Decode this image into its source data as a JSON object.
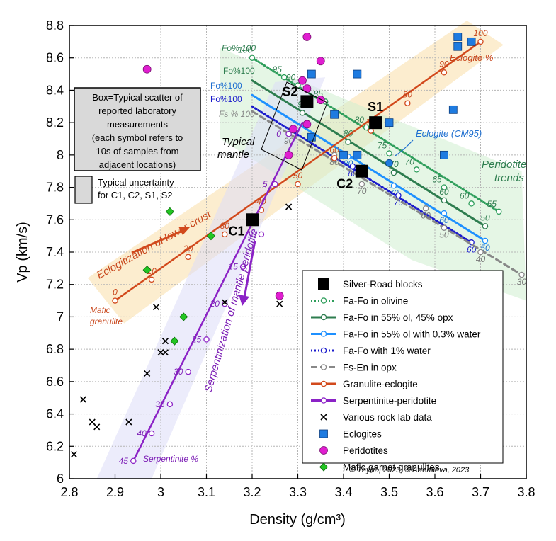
{
  "chart_data": {
    "type": "line",
    "xlabel": "Density (g/cm³)",
    "ylabel": "Vp (km/s)",
    "xlim": [
      2.8,
      3.8
    ],
    "ylim": [
      6.0,
      8.8
    ],
    "xticks": [
      "2.8",
      "2.9",
      "3",
      "3.1",
      "3.2",
      "3.3",
      "3.4",
      "3.5",
      "3.6",
      "3.7",
      "3.8"
    ],
    "yticks": [
      "6",
      "6.2",
      "6.4",
      "6.6",
      "6.8",
      "7",
      "7.2",
      "7.4",
      "7.6",
      "7.8",
      "8",
      "8.2",
      "8.4",
      "8.6",
      "8.8"
    ],
    "grid": true,
    "legend_position": "bottom-right",
    "colors": {
      "olivine": "#2e9e5b",
      "ol_opx": "#2e7d4f",
      "water03": "#1e90ff",
      "water1": "#1a1acc",
      "opx": "#888888",
      "granulite": "#d2491c",
      "serpentinite": "#8b22c6",
      "eclogite_marker": "#1e7be0",
      "peridotite_marker": "#e01ed0",
      "mafic_marker": "#22c522"
    },
    "series": [
      {
        "name": "Fa-Fo in olivine",
        "style": "dotted",
        "x": [
          3.2,
          3.74
        ],
        "y": [
          8.6,
          7.65
        ],
        "ticks": [
          {
            "v": "100",
            "x": 3.2,
            "y": 8.6
          },
          {
            "v": "95",
            "x": 3.27,
            "y": 8.48
          },
          {
            "v": "90",
            "x": 3.3,
            "y": 8.43
          },
          {
            "v": "85",
            "x": 3.36,
            "y": 8.33
          },
          {
            "v": "80",
            "x": 3.45,
            "y": 8.17
          },
          {
            "v": "75",
            "x": 3.5,
            "y": 8.01
          },
          {
            "v": "70",
            "x": 3.56,
            "y": 7.91
          },
          {
            "v": "65",
            "x": 3.62,
            "y": 7.8
          },
          {
            "v": "60",
            "x": 3.68,
            "y": 7.7
          },
          {
            "v": "55",
            "x": 3.74,
            "y": 7.65
          }
        ]
      },
      {
        "name": "Fa-Fo in 55% ol, 45% opx",
        "style": "solid",
        "x": [
          3.2,
          3.71
        ],
        "y": [
          8.46,
          7.56
        ],
        "ticks": [
          {
            "v": "90",
            "x": 3.31,
            "y": 8.26
          },
          {
            "v": "80",
            "x": 3.41,
            "y": 8.08
          },
          {
            "v": "70",
            "x": 3.51,
            "y": 7.89
          },
          {
            "v": "60",
            "x": 3.62,
            "y": 7.72
          },
          {
            "v": "50",
            "x": 3.71,
            "y": 7.56
          }
        ]
      },
      {
        "name": "Fa-Fo in 55% ol with 0.3% water",
        "style": "solid",
        "x": [
          3.2,
          3.71
        ],
        "y": [
          8.37,
          7.47
        ],
        "ticks": [
          {
            "v": "80",
            "x": 3.41,
            "y": 7.99
          },
          {
            "v": "70",
            "x": 3.51,
            "y": 7.81
          },
          {
            "v": "60",
            "x": 3.62,
            "y": 7.64
          },
          {
            "v": "50",
            "x": 3.71,
            "y": 7.47
          }
        ]
      },
      {
        "name": "Fa-Fo with 1% water",
        "style": "dotted",
        "x": [
          3.2,
          3.68
        ],
        "y": [
          8.3,
          7.46
        ],
        "ticks": [
          {
            "v": "80",
            "x": 3.42,
            "y": 7.93
          },
          {
            "v": "70",
            "x": 3.52,
            "y": 7.75
          },
          {
            "v": "60",
            "x": 3.68,
            "y": 7.46
          }
        ]
      },
      {
        "name": "Fs-En in opx",
        "style": "dashed",
        "x": [
          3.2,
          3.79
        ],
        "y": [
          8.27,
          7.26
        ],
        "ticks": [
          {
            "v": "90",
            "x": 3.28,
            "y": 8.13
          },
          {
            "v": "80",
            "x": 3.38,
            "y": 8.0
          },
          {
            "v": "70",
            "x": 3.44,
            "y": 7.82
          },
          {
            "v": "60",
            "x": 3.58,
            "y": 7.67
          },
          {
            "v": "50",
            "x": 3.62,
            "y": 7.55
          },
          {
            "v": "40",
            "x": 3.7,
            "y": 7.4
          },
          {
            "v": "30",
            "x": 3.79,
            "y": 7.26
          }
        ]
      },
      {
        "name": "Granulite-eclogite",
        "style": "solid",
        "x": [
          2.9,
          3.7
        ],
        "y": [
          7.1,
          8.7
        ],
        "ticks": [
          {
            "v": "0",
            "x": 2.9,
            "y": 7.1
          },
          {
            "v": "10",
            "x": 2.98,
            "y": 7.23
          },
          {
            "v": "20",
            "x": 3.06,
            "y": 7.37
          },
          {
            "v": "30",
            "x": 3.14,
            "y": 7.51
          },
          {
            "v": "40",
            "x": 3.22,
            "y": 7.66
          },
          {
            "v": "50",
            "x": 3.3,
            "y": 7.82
          },
          {
            "v": "60",
            "x": 3.38,
            "y": 7.98
          },
          {
            "v": "70",
            "x": 3.46,
            "y": 8.15
          },
          {
            "v": "80",
            "x": 3.54,
            "y": 8.32
          },
          {
            "v": "90",
            "x": 3.62,
            "y": 8.51
          },
          {
            "v": "100",
            "x": 3.7,
            "y": 8.7
          }
        ]
      },
      {
        "name": "Serpentinite-peridotite",
        "style": "solid",
        "x": [
          2.94,
          3.31
        ],
        "y": [
          6.11,
          8.2
        ],
        "ticks": [
          {
            "v": "45",
            "x": 2.94,
            "y": 6.11
          },
          {
            "v": "40",
            "x": 2.98,
            "y": 6.28
          },
          {
            "v": "35",
            "x": 3.02,
            "y": 6.46
          },
          {
            "v": "30",
            "x": 3.06,
            "y": 6.66
          },
          {
            "v": "25",
            "x": 3.1,
            "y": 6.86
          },
          {
            "v": "20",
            "x": 3.14,
            "y": 7.08
          },
          {
            "v": "15",
            "x": 3.18,
            "y": 7.31
          },
          {
            "v": "10",
            "x": 3.22,
            "y": 7.51
          },
          {
            "v": "5",
            "x": 3.25,
            "y": 7.82
          },
          {
            "v": "0",
            "x": 3.28,
            "y": 8.13
          }
        ]
      }
    ],
    "points": {
      "silver_road_blocks": [
        {
          "name": "C1",
          "x": 3.2,
          "y": 7.6
        },
        {
          "name": "C2",
          "x": 3.44,
          "y": 7.9
        },
        {
          "name": "S1",
          "x": 3.47,
          "y": 8.2
        },
        {
          "name": "S2",
          "x": 3.32,
          "y": 8.33
        }
      ],
      "various_rock_lab_data": [
        {
          "x": 2.81,
          "y": 6.15
        },
        {
          "x": 2.83,
          "y": 6.49
        },
        {
          "x": 2.85,
          "y": 6.35
        },
        {
          "x": 2.86,
          "y": 6.32
        },
        {
          "x": 2.93,
          "y": 6.35
        },
        {
          "x": 2.97,
          "y": 6.65
        },
        {
          "x": 2.99,
          "y": 7.06
        },
        {
          "x": 3.0,
          "y": 6.78
        },
        {
          "x": 3.01,
          "y": 6.78
        },
        {
          "x": 3.01,
          "y": 6.85
        },
        {
          "x": 3.14,
          "y": 7.09
        },
        {
          "x": 3.26,
          "y": 7.08
        },
        {
          "x": 3.28,
          "y": 7.68
        }
      ],
      "eclogites": [
        {
          "x": 3.33,
          "y": 8.5
        },
        {
          "x": 3.43,
          "y": 8.5
        },
        {
          "x": 3.33,
          "y": 8.11
        },
        {
          "x": 3.38,
          "y": 8.25
        },
        {
          "x": 3.4,
          "y": 8.0
        },
        {
          "x": 3.43,
          "y": 8.0
        },
        {
          "x": 3.5,
          "y": 8.2
        },
        {
          "x": 3.62,
          "y": 8.0
        },
        {
          "x": 3.64,
          "y": 8.28
        },
        {
          "x": 3.65,
          "y": 8.73
        },
        {
          "x": 3.65,
          "y": 8.67
        },
        {
          "x": 3.68,
          "y": 8.7
        }
      ],
      "peridotites": [
        {
          "x": 3.32,
          "y": 8.73
        },
        {
          "x": 3.35,
          "y": 8.58
        },
        {
          "x": 3.31,
          "y": 8.46
        },
        {
          "x": 3.32,
          "y": 8.41
        },
        {
          "x": 3.35,
          "y": 8.34
        },
        {
          "x": 3.29,
          "y": 8.16
        },
        {
          "x": 3.32,
          "y": 8.19
        },
        {
          "x": 3.28,
          "y": 8.0
        },
        {
          "x": 2.97,
          "y": 8.53
        },
        {
          "x": 3.26,
          "y": 7.13
        }
      ],
      "mafic_garnet_granulites": [
        {
          "x": 3.02,
          "y": 7.65
        },
        {
          "x": 3.11,
          "y": 7.5
        },
        {
          "x": 2.97,
          "y": 7.29
        },
        {
          "x": 3.05,
          "y": 7.0
        },
        {
          "x": 3.03,
          "y": 6.85
        }
      ],
      "eclogite_cm95": {
        "x": 3.5,
        "y": 7.95
      }
    },
    "annotations": {
      "fo100_labels": [
        "Fo% 100",
        "Fo%100",
        "Fo%100",
        "Fo%100"
      ],
      "fs100": "Fs % 100",
      "eclogite_pct": "Eclogite %",
      "eclogite_cm95": "Eclogite (CM95)",
      "peridotite_trends_1": "Peridotite",
      "peridotite_trends_2": "trends",
      "typical_mantle_1": "Typical",
      "typical_mantle_2": "mantle",
      "eclogitization": "Eclogitization of lower crust",
      "mafic_granulite_1": "Mafic",
      "mafic_granulite_2": "granulite",
      "serpentinization": "Serpentinization of mantle peridotite",
      "serpentinite_pct": "Serpentinite %",
      "box_text": [
        "Box=Typical scatter of",
        "reported laboratory",
        "measurements",
        "(each symbol refers to",
        "10s of samples from",
        "adjacent locations)"
      ],
      "uncertainty_text": [
        "Typical uncertainty",
        "for C1, C2, S1, S2"
      ],
      "copyright": "© Thybo, 2023;  © Artemieva, 2023"
    },
    "legend": [
      "Silver-Road blocks",
      "Fa-Fo in olivine",
      "Fa-Fo in 55% ol, 45% opx",
      "Fa-Fo in 55% ol with 0.3% water",
      "Fa-Fo with 1% water",
      "Fs-En in opx",
      "Granulite-eclogite",
      "Serpentinite-peridotite",
      "Various rock lab data",
      "Eclogites",
      "Peridotites",
      "Mafic garnet granulites"
    ]
  }
}
